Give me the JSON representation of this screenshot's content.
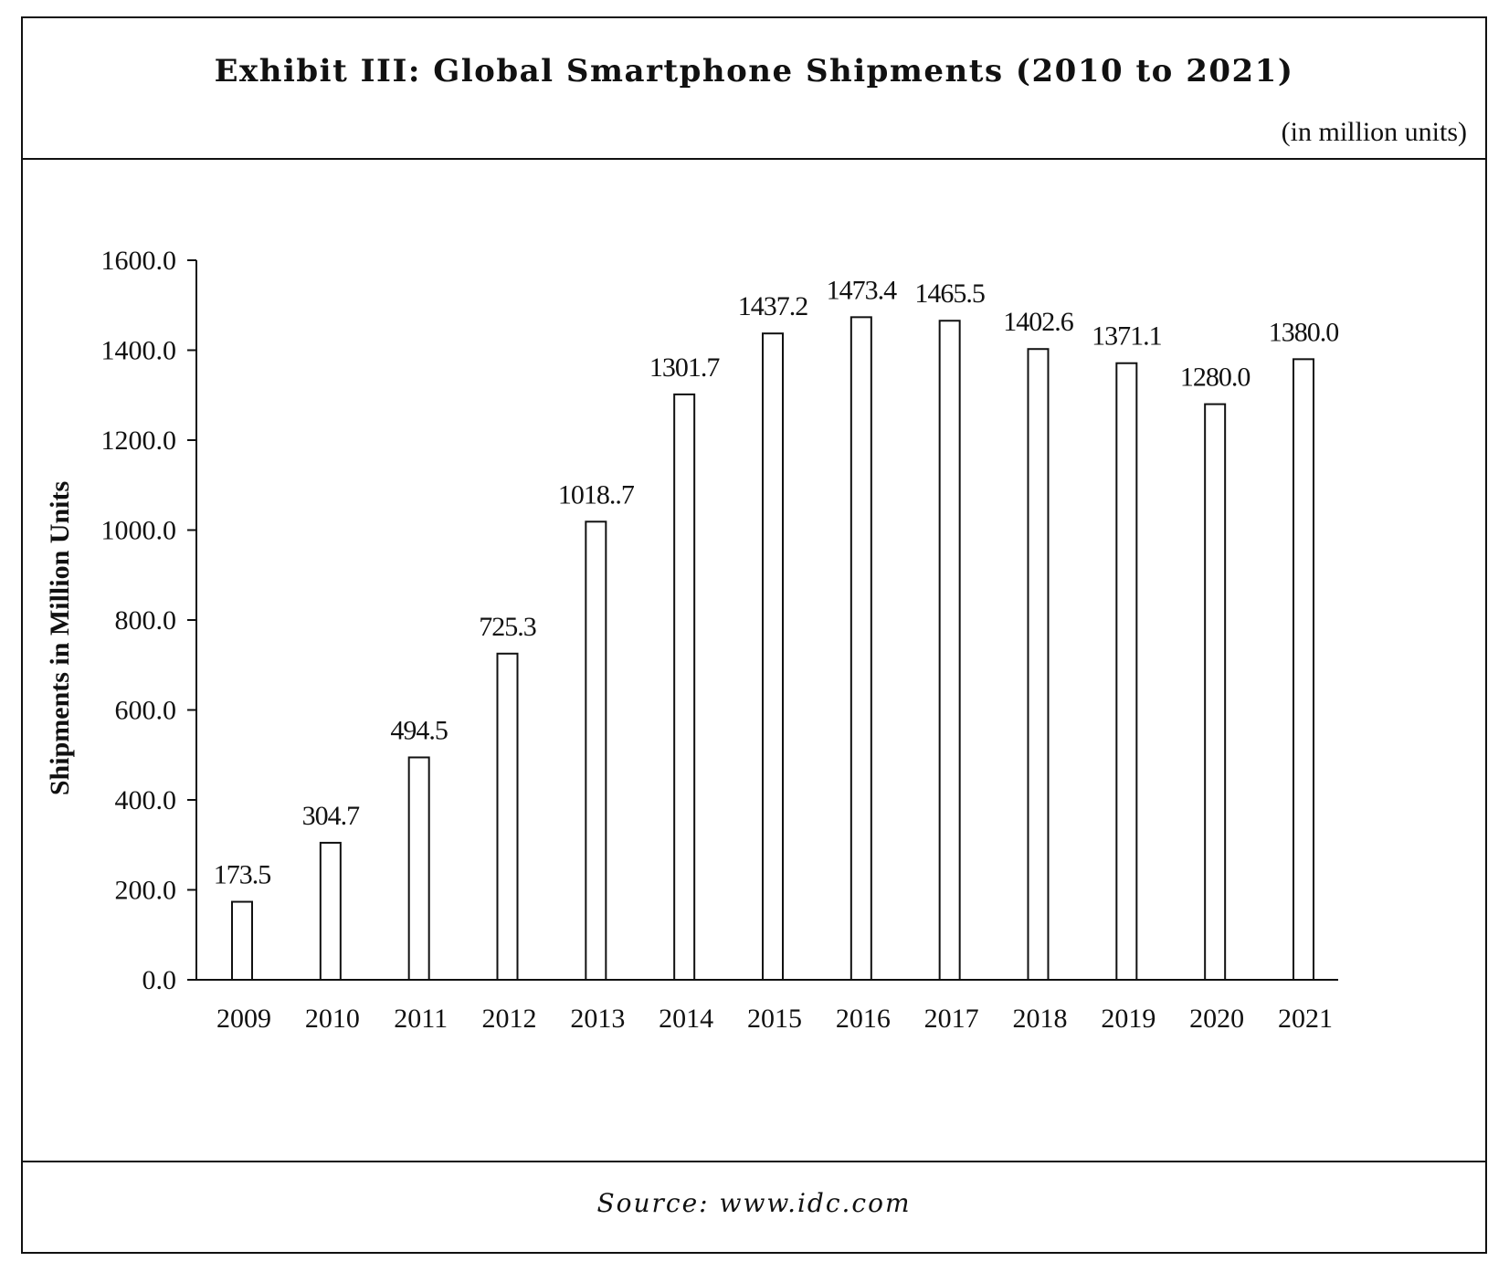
{
  "header": {
    "title": "Exhibit III: Global Smartphone Shipments (2010 to 2021)",
    "subtitle": "(in million units)"
  },
  "footer": {
    "source": "Source: www.idc.com"
  },
  "chart_data": {
    "type": "bar",
    "title": "Exhibit III: Global Smartphone Shipments (2010 to 2021)",
    "subtitle": "(in million units)",
    "xlabel": "",
    "ylabel": "Shipments in Million Units",
    "categories": [
      "2009",
      "2010",
      "2011",
      "2012",
      "2013",
      "2014",
      "2015",
      "2016",
      "2017",
      "2018",
      "2019",
      "2020",
      "2021"
    ],
    "values": [
      173.5,
      304.7,
      494.5,
      725.3,
      1018.7,
      1301.7,
      1437.2,
      1473.4,
      1465.5,
      1402.6,
      1371.1,
      1280.0,
      1380.0
    ],
    "data_labels": [
      "173.5",
      "304.7",
      "494.5",
      "725.3",
      "1018..7",
      "1301.7",
      "1437.2",
      "1473.4",
      "1465.5",
      "1402.6",
      "1371.1",
      "1280.0",
      "1380.0"
    ],
    "yticks": [
      "0.0",
      "200.0",
      "400.0",
      "600.0",
      "800.0",
      "1000.0",
      "1200.0",
      "1400.0",
      "1600.0"
    ],
    "ylim": [
      0,
      1600
    ],
    "grid": false,
    "legend": "none",
    "bar_fill": "#ffffff",
    "bar_stroke": "#111111"
  }
}
